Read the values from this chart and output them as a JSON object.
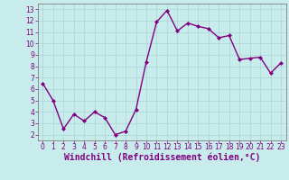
{
  "x": [
    0,
    1,
    2,
    3,
    4,
    5,
    6,
    7,
    8,
    9,
    10,
    11,
    12,
    13,
    14,
    15,
    16,
    17,
    18,
    19,
    20,
    21,
    22,
    23
  ],
  "y": [
    6.5,
    5.0,
    2.5,
    3.8,
    3.2,
    4.0,
    3.5,
    2.0,
    2.3,
    4.2,
    8.4,
    11.9,
    12.9,
    11.1,
    11.8,
    11.5,
    11.3,
    10.5,
    10.7,
    8.6,
    8.7,
    8.8,
    7.4,
    8.3
  ],
  "line_color": "#800080",
  "marker": "D",
  "marker_size": 2.0,
  "line_width": 1.0,
  "bg_color": "#c8ecec",
  "grid_color": "#aed8d8",
  "xlabel": "Windchill (Refroidissement éolien,°C)",
  "ylabel": "",
  "xlim": [
    -0.5,
    23.5
  ],
  "ylim": [
    1.5,
    13.5
  ],
  "yticks": [
    2,
    3,
    4,
    5,
    6,
    7,
    8,
    9,
    10,
    11,
    12,
    13
  ],
  "xticks": [
    0,
    1,
    2,
    3,
    4,
    5,
    6,
    7,
    8,
    9,
    10,
    11,
    12,
    13,
    14,
    15,
    16,
    17,
    18,
    19,
    20,
    21,
    22,
    23
  ],
  "tick_color": "#800080",
  "label_color": "#800080",
  "spine_color": "#808080",
  "tick_fontsize": 5.5,
  "xlabel_fontsize": 7.0
}
